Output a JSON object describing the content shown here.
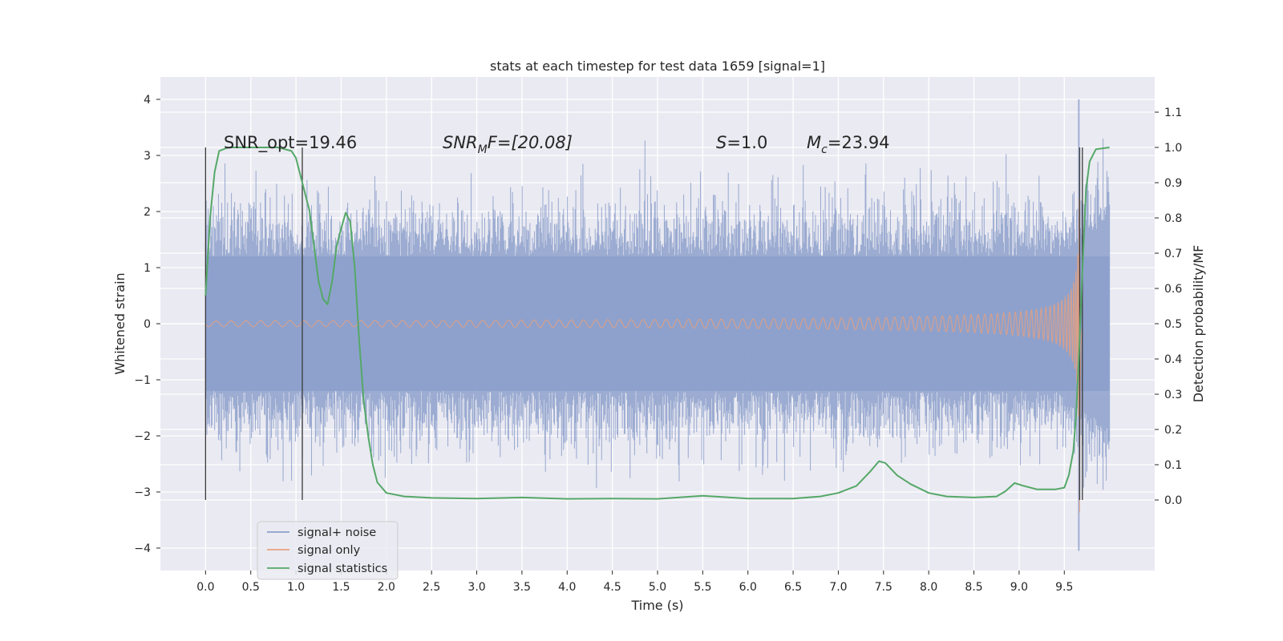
{
  "chart_data": {
    "type": "line",
    "title": "stats at each timestep for test data 1659 [signal=1]",
    "xlabel": "Time (s)",
    "ylabel": "Whitened strain",
    "ylabel_right": "Detection probability/MF",
    "xlim": [
      -0.5,
      10.5
    ],
    "ylim": [
      -4.4,
      4.4
    ],
    "ylim_right": [
      -0.2,
      1.2
    ],
    "x_ticks": [
      "0.0",
      "0.5",
      "1.0",
      "1.5",
      "2.0",
      "2.5",
      "3.0",
      "3.5",
      "4.0",
      "4.5",
      "5.0",
      "5.5",
      "6.0",
      "6.5",
      "7.0",
      "7.5",
      "8.0",
      "8.5",
      "9.0",
      "9.5"
    ],
    "y_ticks": [
      "−4",
      "−3",
      "−2",
      "−1",
      "0",
      "1",
      "2",
      "3",
      "4"
    ],
    "y_ticks_right": [
      "0.0",
      "0.1",
      "0.2",
      "0.3",
      "0.4",
      "0.5",
      "0.6",
      "0.7",
      "0.8",
      "0.9",
      "1.0",
      "1.1"
    ],
    "grid": true,
    "legend_position": "lower-left",
    "annotations": {
      "snr_opt": "SNR_opt=19.46",
      "snr_mf_prefix": "SNR",
      "snr_mf_sub": "M",
      "snr_mf_suffix": "F=[20.08]",
      "s_symbol": "S",
      "s_value": "=1.0",
      "mc_symbol": "M",
      "mc_sub": "c",
      "mc_value": "=23.94"
    },
    "vertical_markers_s": [
      0.0,
      1.07,
      9.67,
      9.7
    ],
    "series": [
      {
        "name": "signal+ noise",
        "color": "#8da0cb",
        "x_range": [
          0.0,
          10.0
        ],
        "typical_amplitude": 1.2,
        "peak_max": 4.0,
        "peak_min": -4.05
      },
      {
        "name": "signal only",
        "color": "#e8a07e",
        "x_range": [
          0.0,
          9.7
        ],
        "chirp_peak_time": 9.67,
        "peak_max": 3.4,
        "peak_min": -3.5
      },
      {
        "name": "signal statistics",
        "color": "#55a868",
        "points": [
          [
            0.0,
            0.58
          ],
          [
            0.05,
            0.8
          ],
          [
            0.1,
            0.93
          ],
          [
            0.15,
            0.99
          ],
          [
            0.25,
            1.0
          ],
          [
            0.5,
            1.0
          ],
          [
            0.8,
            1.0
          ],
          [
            0.95,
            0.99
          ],
          [
            1.0,
            0.97
          ],
          [
            1.05,
            0.92
          ],
          [
            1.15,
            0.82
          ],
          [
            1.2,
            0.72
          ],
          [
            1.25,
            0.62
          ],
          [
            1.3,
            0.57
          ],
          [
            1.35,
            0.555
          ],
          [
            1.4,
            0.62
          ],
          [
            1.45,
            0.72
          ],
          [
            1.5,
            0.77
          ],
          [
            1.55,
            0.815
          ],
          [
            1.6,
            0.79
          ],
          [
            1.65,
            0.66
          ],
          [
            1.7,
            0.45
          ],
          [
            1.75,
            0.28
          ],
          [
            1.8,
            0.18
          ],
          [
            1.85,
            0.1
          ],
          [
            1.9,
            0.05
          ],
          [
            2.0,
            0.02
          ],
          [
            2.2,
            0.01
          ],
          [
            2.5,
            0.006
          ],
          [
            3.0,
            0.004
          ],
          [
            3.5,
            0.007
          ],
          [
            4.0,
            0.003
          ],
          [
            4.5,
            0.004
          ],
          [
            5.0,
            0.003
          ],
          [
            5.5,
            0.012
          ],
          [
            6.0,
            0.004
          ],
          [
            6.5,
            0.004
          ],
          [
            6.8,
            0.01
          ],
          [
            7.0,
            0.02
          ],
          [
            7.2,
            0.04
          ],
          [
            7.35,
            0.08
          ],
          [
            7.45,
            0.11
          ],
          [
            7.52,
            0.105
          ],
          [
            7.65,
            0.07
          ],
          [
            7.8,
            0.045
          ],
          [
            8.0,
            0.02
          ],
          [
            8.2,
            0.01
          ],
          [
            8.5,
            0.007
          ],
          [
            8.75,
            0.01
          ],
          [
            8.85,
            0.025
          ],
          [
            8.95,
            0.048
          ],
          [
            9.05,
            0.04
          ],
          [
            9.2,
            0.03
          ],
          [
            9.4,
            0.03
          ],
          [
            9.5,
            0.035
          ],
          [
            9.55,
            0.07
          ],
          [
            9.6,
            0.14
          ],
          [
            9.63,
            0.24
          ],
          [
            9.66,
            0.4
          ],
          [
            9.7,
            0.65
          ],
          [
            9.74,
            0.88
          ],
          [
            9.78,
            0.96
          ],
          [
            9.85,
            0.995
          ],
          [
            10.0,
            1.0
          ]
        ]
      }
    ]
  }
}
